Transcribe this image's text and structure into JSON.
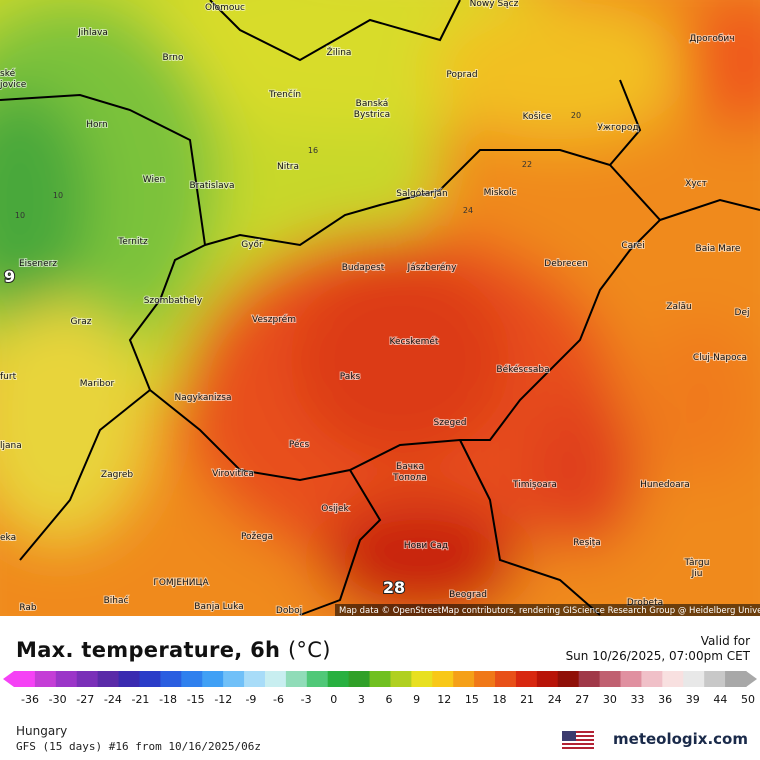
{
  "map": {
    "places": [
      "Olomouc",
      "Nowy Sącz",
      "Jihlava",
      "Brno",
      "Žilina",
      "Poprad",
      "Дрогобич",
      "Trenčín",
      "Banská",
      "Bystrica",
      "Košice",
      "Ужгород",
      "Horn",
      "Nitra",
      "Wien",
      "Bratislava",
      "Хуст",
      "Salgótarján",
      "Miskolc",
      "Ternitz",
      "Győr",
      "Carei",
      "Baia Mare",
      "Eisenerz",
      "Budapest",
      "Jászberény",
      "Debrecen",
      "Szombathely",
      "Veszprém",
      "Graz",
      "Zalău",
      "Dej",
      "Kecskemét",
      "Cluj-Napoca",
      "Békéscsaba",
      "Paks",
      "Maribor",
      "Nagykanizsa",
      "Szeged",
      "Pécs",
      "Zagreb",
      "Virovitica",
      "Бачка",
      "Топола",
      "Timișoara",
      "Hunedoara",
      "Osijek",
      "Požega",
      "Reșița",
      "Нови Сад",
      "Târgu",
      "Jiu",
      "ГОМЈЕНИЦА",
      "Banja Luka",
      "Doboj",
      "Beograd",
      "Drobeta",
      "Bihać",
      "ské",
      "jovice",
      "furt",
      "ljana",
      "eka",
      "Rab"
    ],
    "contour_labels": [
      "10",
      "10",
      "16",
      "20",
      "22",
      "24"
    ],
    "max_label": "28",
    "edge_label": "9",
    "attribution": "Map data © OpenStreetMap contributors, rendering GIScience Research Group @ Heidelberg University"
  },
  "legend": {
    "title": "Max. temperature, 6h",
    "unit": "(°C)",
    "ticks": [
      -36,
      -30,
      -27,
      -24,
      -21,
      -18,
      -15,
      -12,
      -9,
      -6,
      -3,
      0,
      3,
      6,
      9,
      12,
      15,
      18,
      21,
      24,
      27,
      30,
      33,
      36,
      39,
      44,
      50
    ]
  },
  "valid": {
    "label": "Valid for",
    "time": "Sun 10/26/2025, 07:00pm CET"
  },
  "footer": {
    "region": "Hungary",
    "model": "GFS (15 days) #16 from  10/16/2025/06z",
    "brand": "meteologix.com"
  }
}
